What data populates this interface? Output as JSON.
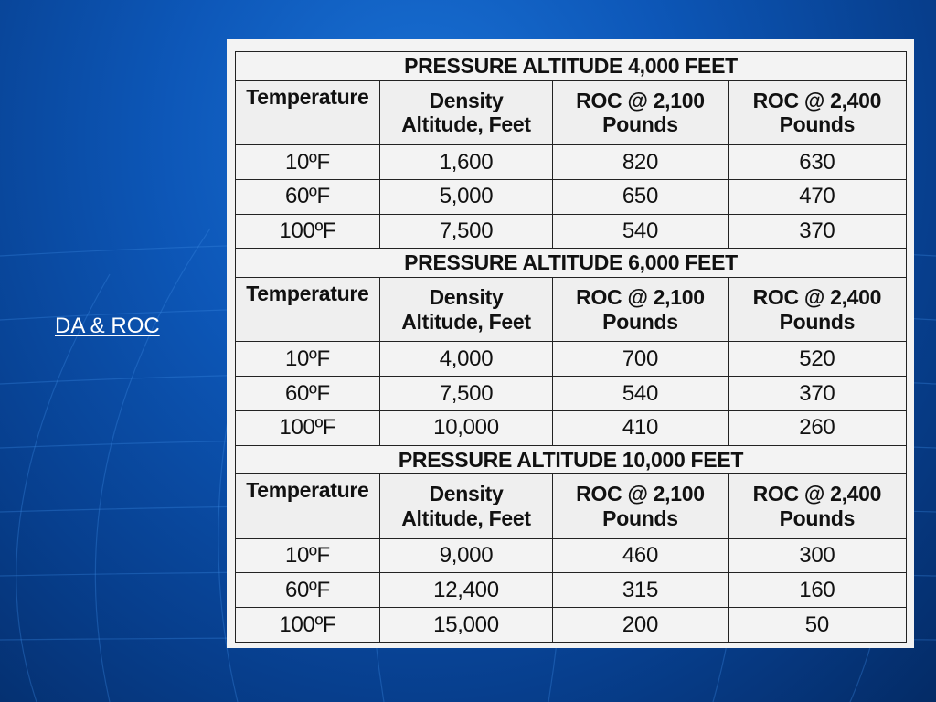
{
  "slide": {
    "link_text": "DA & ROC"
  },
  "table": {
    "headers": {
      "temperature": "Temperature",
      "density_line1": "Density",
      "density_line2": "Altitude, Feet",
      "roc1_line1": "ROC @ 2,100",
      "roc1_line2": "Pounds",
      "roc2_line1": "ROC @ 2,400",
      "roc2_line2": "Pounds"
    },
    "sections": [
      {
        "title": "PRESSURE ALTITUDE 4,000 FEET",
        "rows": [
          {
            "temp": "10ºF",
            "density": "1,600",
            "roc2100": "820",
            "roc2400": "630"
          },
          {
            "temp": "60ºF",
            "density": "5,000",
            "roc2100": "650",
            "roc2400": "470"
          },
          {
            "temp": "100ºF",
            "density": "7,500",
            "roc2100": "540",
            "roc2400": "370"
          }
        ]
      },
      {
        "title": "PRESSURE ALTITUDE 6,000 FEET",
        "rows": [
          {
            "temp": "10ºF",
            "density": "4,000",
            "roc2100": "700",
            "roc2400": "520"
          },
          {
            "temp": "60ºF",
            "density": "7,500",
            "roc2100": "540",
            "roc2400": "370"
          },
          {
            "temp": "100ºF",
            "density": "10,000",
            "roc2100": "410",
            "roc2400": "260"
          }
        ]
      },
      {
        "title": "PRESSURE ALTITUDE 10,000 FEET",
        "rows": [
          {
            "temp": "10ºF",
            "density": "9,000",
            "roc2100": "460",
            "roc2400": "300"
          },
          {
            "temp": "60ºF",
            "density": "12,400",
            "roc2100": "315",
            "roc2400": "160"
          },
          {
            "temp": "100ºF",
            "density": "15,000",
            "roc2100": "200",
            "roc2400": "50"
          }
        ]
      }
    ]
  }
}
